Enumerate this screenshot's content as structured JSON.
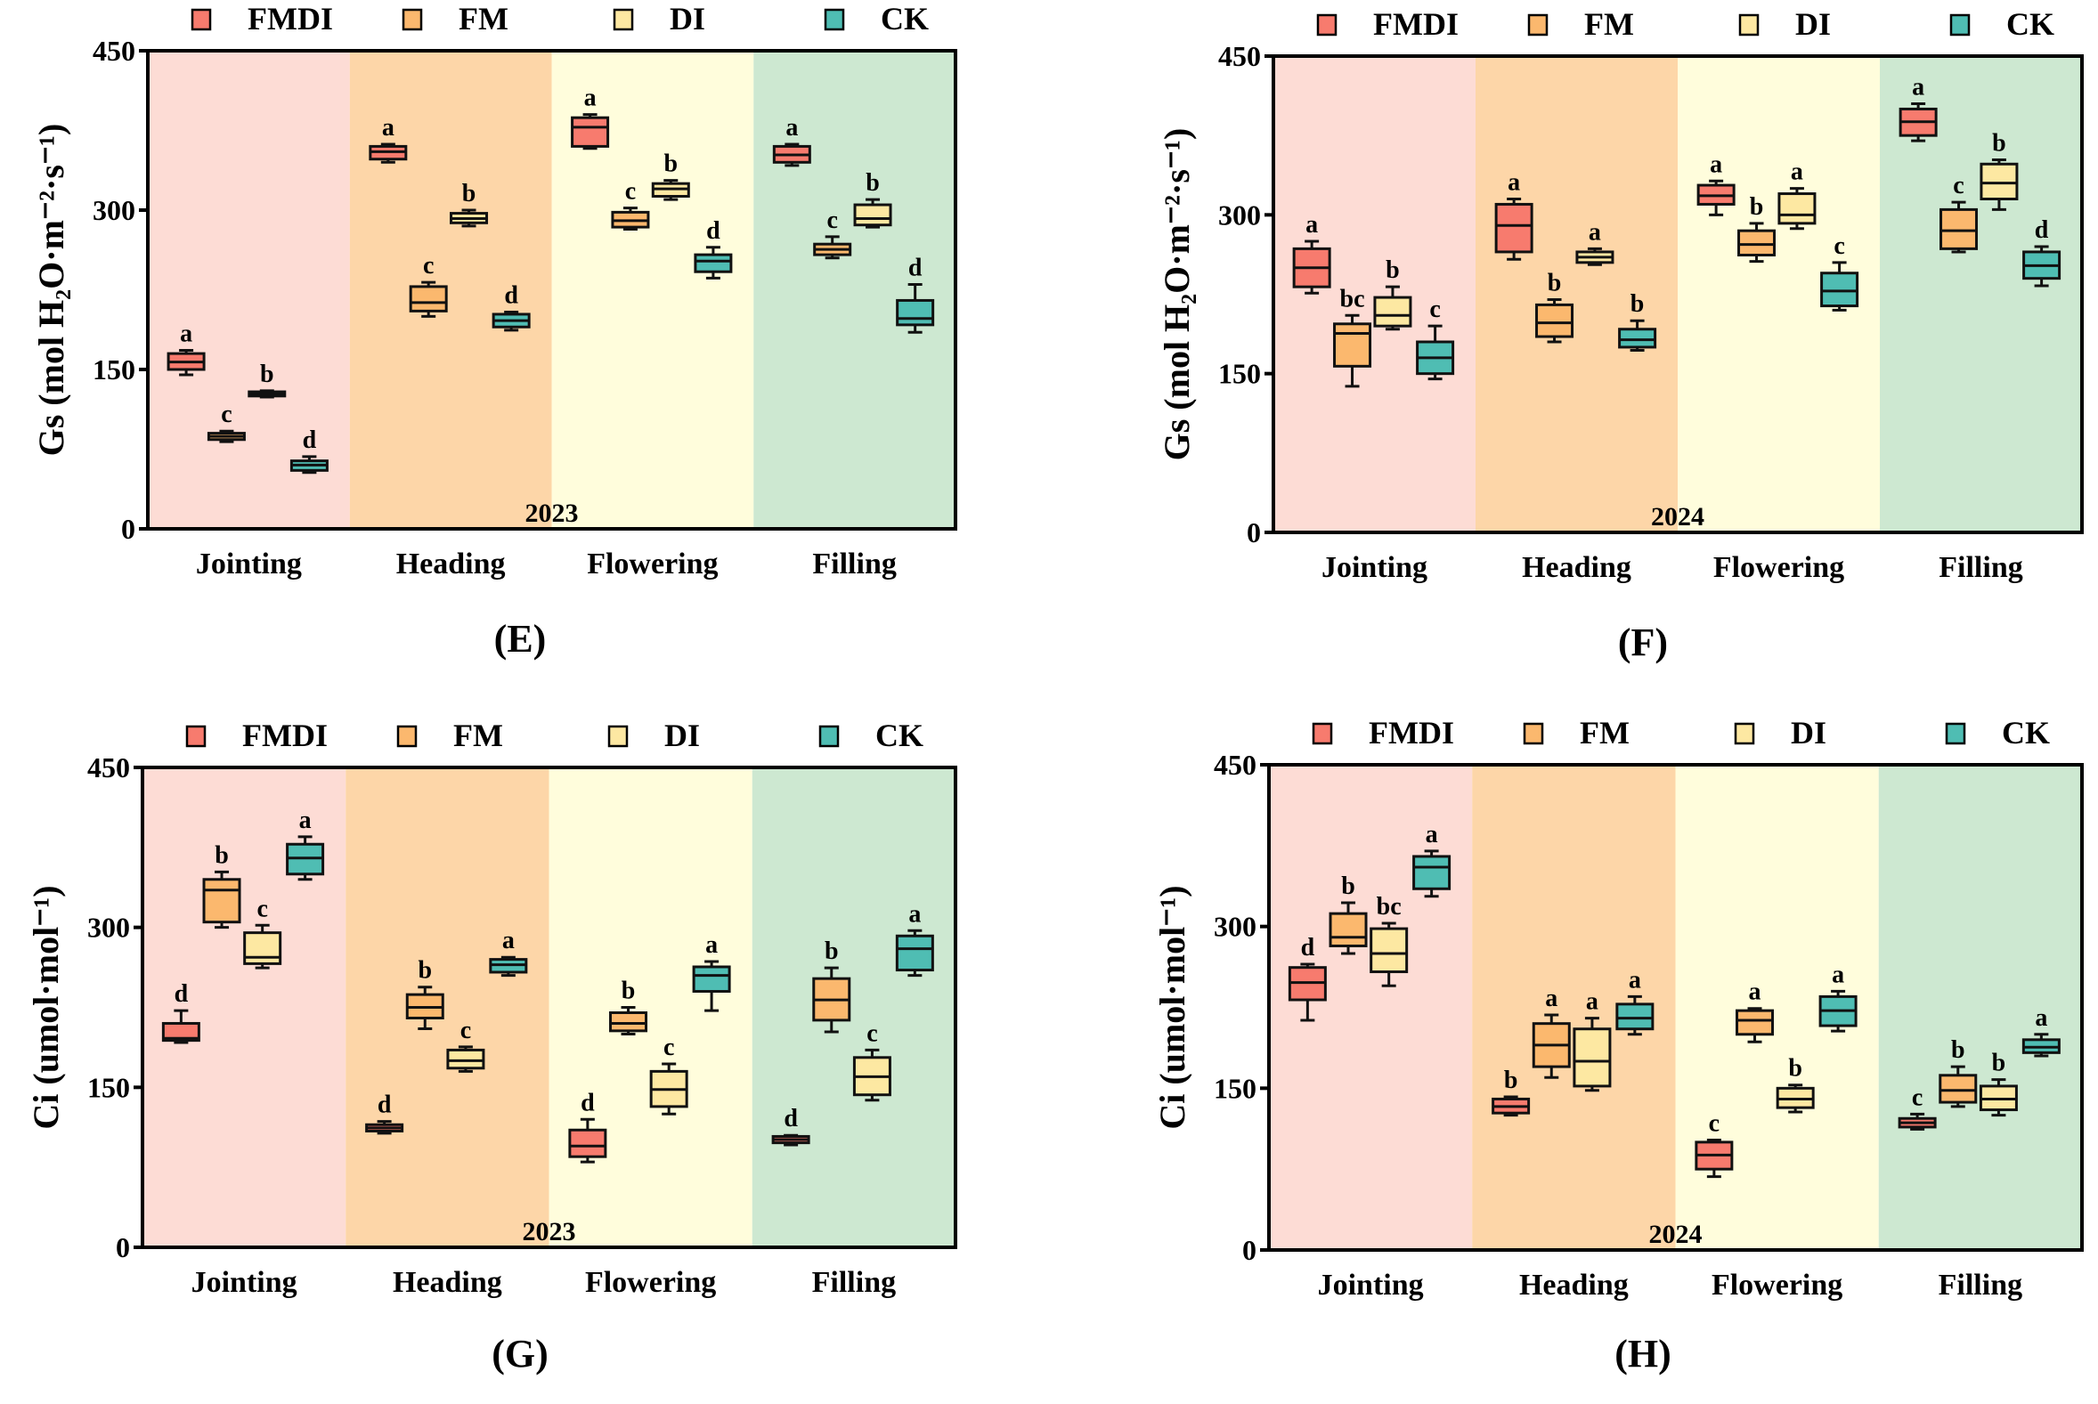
{
  "colors": {
    "FMDI": "#f77b6e",
    "FM": "#fbb86e",
    "DI": "#fde8a2",
    "CK": "#4fbdb3",
    "bands": [
      "#fddcd5",
      "#fdd6a8",
      "#fffddc",
      "#cde8d1"
    ]
  },
  "chart_data": [
    {
      "type": "box",
      "panel_label": "(E)",
      "year": "2023",
      "ylabel": "Gs (mol H₂O·m⁻²·s⁻¹)",
      "ylim": [
        0,
        450
      ],
      "yticks": [
        "0",
        "150",
        "300",
        "450"
      ],
      "legend": [
        "FMDI",
        "FM",
        "DI",
        "CK"
      ],
      "legend_position": "top",
      "categories": [
        "Jointing",
        "Heading",
        "Flowering",
        "Filling"
      ],
      "series": [
        {
          "name": "FMDI",
          "boxes": [
            [
              145,
              150,
              157,
              165,
              168
            ],
            [
              345,
              348,
              355,
              360,
              362
            ],
            [
              358,
              360,
              378,
              387,
              390
            ],
            [
              342,
              345,
              352,
              360,
              362
            ]
          ],
          "letters": [
            "a",
            "a",
            "a",
            "a"
          ]
        },
        {
          "name": "FM",
          "boxes": [
            [
              82,
              84,
              87,
              90,
              92
            ],
            [
              200,
              205,
              213,
              228,
              232
            ],
            [
              282,
              284,
              290,
              298,
              302
            ],
            [
              255,
              258,
              263,
              268,
              275
            ]
          ],
          "letters": [
            "c",
            "c",
            "c",
            "c"
          ]
        },
        {
          "name": "DI",
          "boxes": [
            [
              124,
              125,
              127,
              129,
              130
            ],
            [
              285,
              288,
              292,
              297,
              300
            ],
            [
              310,
              313,
              320,
              325,
              328
            ],
            [
              284,
              286,
              292,
              305,
              310
            ]
          ],
          "letters": [
            "b",
            "b",
            "b",
            "b"
          ]
        },
        {
          "name": "CK",
          "boxes": [
            [
              53,
              55,
              60,
              64,
              68
            ],
            [
              187,
              190,
              196,
              202,
              204
            ],
            [
              236,
              242,
              252,
              258,
              265
            ],
            [
              185,
              192,
              198,
              215,
              230
            ]
          ],
          "letters": [
            "d",
            "d",
            "d",
            "d"
          ]
        }
      ]
    },
    {
      "type": "box",
      "panel_label": "(F)",
      "year": "2024",
      "ylabel": "Gs (mol H₂O·m⁻²·s⁻¹)",
      "ylim": [
        0,
        450
      ],
      "yticks": [
        "0",
        "150",
        "300",
        "450"
      ],
      "legend": [
        "FMDI",
        "FM",
        "DI",
        "CK"
      ],
      "legend_position": "top",
      "categories": [
        "Jointing",
        "Heading",
        "Flowering",
        "Filling"
      ],
      "series": [
        {
          "name": "FMDI",
          "boxes": [
            [
              226,
              232,
              250,
              268,
              275
            ],
            [
              258,
              265,
              290,
              310,
              315
            ],
            [
              300,
              310,
              318,
              328,
              332
            ],
            [
              370,
              375,
              388,
              400,
              405
            ]
          ],
          "letters": [
            "a",
            "a",
            "a",
            "a"
          ]
        },
        {
          "name": "FM",
          "boxes": [
            [
              138,
              157,
              188,
              197,
              205
            ],
            [
              180,
              185,
              198,
              215,
              220
            ],
            [
              256,
              262,
              272,
              285,
              292
            ],
            [
              265,
              268,
              285,
              305,
              312
            ]
          ],
          "letters": [
            "bc",
            "b",
            "b",
            "c"
          ]
        },
        {
          "name": "DI",
          "boxes": [
            [
              192,
              195,
              205,
              222,
              232
            ],
            [
              253,
              255,
              260,
              265,
              268
            ],
            [
              287,
              292,
              300,
              320,
              325
            ],
            [
              305,
              315,
              330,
              348,
              352
            ]
          ],
          "letters": [
            "b",
            "a",
            "a",
            "b"
          ]
        },
        {
          "name": "CK",
          "boxes": [
            [
              145,
              150,
              165,
              180,
              195
            ],
            [
              172,
              175,
              182,
              192,
              200
            ],
            [
              210,
              214,
              228,
              245,
              255
            ],
            [
              233,
              240,
              252,
              265,
              270
            ]
          ],
          "letters": [
            "c",
            "b",
            "c",
            "d"
          ]
        }
      ]
    },
    {
      "type": "box",
      "panel_label": "(G)",
      "year": "2023",
      "ylabel": "Ci (umol·mol⁻¹)",
      "ylim": [
        0,
        450
      ],
      "yticks": [
        "0",
        "150",
        "300",
        "450"
      ],
      "legend": [
        "FMDI",
        "FM",
        "DI",
        "CK"
      ],
      "legend_position": "top",
      "categories": [
        "Jointing",
        "Heading",
        "Flowering",
        "Filling"
      ],
      "series": [
        {
          "name": "FMDI",
          "boxes": [
            [
              192,
              194,
              196,
              210,
              222
            ],
            [
              107,
              109,
              112,
              115,
              118
            ],
            [
              80,
              85,
              95,
              110,
              120
            ],
            [
              96,
              98,
              101,
              104,
              105
            ]
          ],
          "letters": [
            "d",
            "d",
            "d",
            "d"
          ]
        },
        {
          "name": "FM",
          "boxes": [
            [
              300,
              305,
              335,
              345,
              352
            ],
            [
              205,
              215,
              225,
              237,
              244
            ],
            [
              200,
              203,
              210,
              220,
              225
            ],
            [
              202,
              213,
              232,
              252,
              262
            ]
          ],
          "letters": [
            "b",
            "b",
            "b",
            "b"
          ]
        },
        {
          "name": "DI",
          "boxes": [
            [
              262,
              266,
              272,
              295,
              302
            ],
            [
              165,
              168,
              175,
              185,
              188
            ],
            [
              125,
              132,
              148,
              165,
              172
            ],
            [
              138,
              143,
              160,
              178,
              185
            ]
          ],
          "letters": [
            "c",
            "c",
            "c",
            "c"
          ]
        },
        {
          "name": "CK",
          "boxes": [
            [
              345,
              350,
              365,
              378,
              385
            ],
            [
              255,
              258,
              265,
              270,
              272
            ],
            [
              222,
              240,
              255,
              263,
              268
            ],
            [
              255,
              260,
              280,
              292,
              297
            ]
          ],
          "letters": [
            "a",
            "a",
            "a",
            "a"
          ]
        }
      ]
    },
    {
      "type": "box",
      "panel_label": "(H)",
      "year": "2024",
      "ylabel": "Ci (umol·mol⁻¹)",
      "ylim": [
        0,
        450
      ],
      "yticks": [
        "0",
        "150",
        "300",
        "450"
      ],
      "legend": [
        "FMDI",
        "FM",
        "DI",
        "CK"
      ],
      "legend_position": "top",
      "categories": [
        "Jointing",
        "Heading",
        "Flowering",
        "Filling"
      ],
      "series": [
        {
          "name": "FMDI",
          "boxes": [
            [
              213,
              232,
              248,
              262,
              265
            ],
            [
              125,
              127,
              133,
              140,
              142
            ],
            [
              68,
              75,
              88,
              100,
              102
            ],
            [
              112,
              114,
              118,
              122,
              126
            ]
          ],
          "letters": [
            "d",
            "b",
            "c",
            "c"
          ]
        },
        {
          "name": "FM",
          "boxes": [
            [
              275,
              282,
              290,
              312,
              322
            ],
            [
              160,
              170,
              190,
              210,
              218
            ],
            [
              193,
              200,
              213,
              222,
              224
            ],
            [
              133,
              137,
              148,
              162,
              170
            ]
          ],
          "letters": [
            "b",
            "a",
            "a",
            "b"
          ]
        },
        {
          "name": "DI",
          "boxes": [
            [
              245,
              258,
              275,
              298,
              303
            ],
            [
              148,
              152,
              175,
              205,
              215
            ],
            [
              128,
              132,
              140,
              150,
              153
            ],
            [
              125,
              130,
              140,
              152,
              158
            ]
          ],
          "letters": [
            "bc",
            "a",
            "b",
            "b"
          ]
        },
        {
          "name": "CK",
          "boxes": [
            [
              328,
              335,
              355,
              365,
              370
            ],
            [
              200,
              205,
              215,
              228,
              235
            ],
            [
              203,
              208,
              222,
              235,
              240
            ],
            [
              180,
              183,
              188,
              195,
              200
            ]
          ],
          "letters": [
            "a",
            "a",
            "a",
            "a"
          ]
        }
      ]
    }
  ]
}
